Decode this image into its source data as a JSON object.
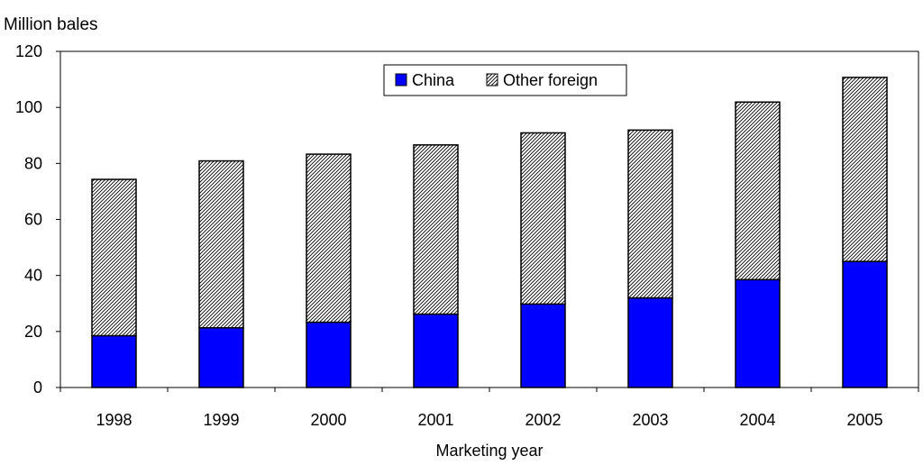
{
  "chart_data": {
    "type": "bar",
    "stacked": true,
    "ylabel": "Million bales",
    "xlabel": "Marketing year",
    "categories": [
      "1998",
      "1999",
      "2000",
      "2001",
      "2002",
      "2003",
      "2004",
      "2005"
    ],
    "ylim": [
      0,
      120
    ],
    "yticks": [
      0,
      20,
      40,
      60,
      80,
      100,
      120
    ],
    "grid": false,
    "legend_position": "top-center",
    "series": [
      {
        "name": "China",
        "values": [
          18.5,
          21.3,
          23.3,
          26.2,
          29.8,
          32.0,
          38.5,
          45.0
        ],
        "color": "#0000ff",
        "pattern": "solid"
      },
      {
        "name": "Other foreign",
        "values": [
          55.8,
          59.6,
          60.0,
          60.4,
          61.1,
          59.9,
          63.4,
          65.7
        ],
        "color": "#ffffff",
        "pattern": "diagonal-hatch"
      }
    ]
  }
}
